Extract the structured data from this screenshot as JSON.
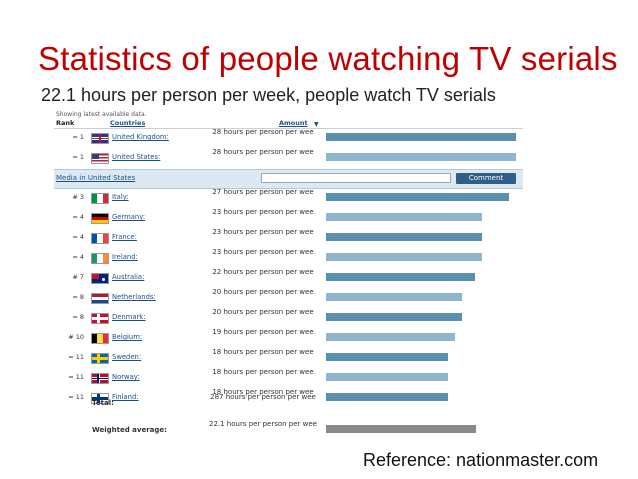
{
  "slide": {
    "title": "Statistics of people watching TV serials",
    "subtitle": "22.1 hours per person per week, people watch TV serials",
    "reference": "Reference: nationmaster.com"
  },
  "table": {
    "showing": "Showing latest available data.",
    "headers": {
      "rank": "Rank",
      "countries": "Countries",
      "amount": "Amount"
    },
    "media": {
      "label": "Media in United States",
      "button": "Comment"
    },
    "rows": [
      {
        "rank": "= 1",
        "country": "United Kingdom:",
        "amount": "28 hours per person per wee",
        "hours": 28,
        "flag": "uk"
      },
      {
        "rank": "= 1",
        "country": "United States:",
        "amount": "28 hours per person per wee",
        "hours": 28,
        "flag": "us"
      },
      {
        "rank": "# 3",
        "country": "Italy:",
        "amount": "27 hours per person per wee",
        "hours": 27,
        "flag": "it"
      },
      {
        "rank": "= 4",
        "country": "Germany:",
        "amount": "23 hours per person per wee",
        "hours": 23,
        "flag": "de"
      },
      {
        "rank": "= 4",
        "country": "France:",
        "amount": "23 hours per person per wee",
        "hours": 23,
        "flag": "fr"
      },
      {
        "rank": "= 4",
        "country": "Ireland:",
        "amount": "23 hours per person per wee",
        "hours": 23,
        "flag": "ie"
      },
      {
        "rank": "# 7",
        "country": "Australia:",
        "amount": "22 hours per person per wee",
        "hours": 22,
        "flag": "au"
      },
      {
        "rank": "= 8",
        "country": "Netherlands:",
        "amount": "20 hours per person per wee",
        "hours": 20,
        "flag": "nl"
      },
      {
        "rank": "= 8",
        "country": "Denmark:",
        "amount": "20 hours per person per wee",
        "hours": 20,
        "flag": "dk"
      },
      {
        "rank": "# 10",
        "country": "Belgium:",
        "amount": "19 hours per person per wee",
        "hours": 19,
        "flag": "be"
      },
      {
        "rank": "= 11",
        "country": "Sweden:",
        "amount": "18 hours per person per wee",
        "hours": 18,
        "flag": "se"
      },
      {
        "rank": "= 11",
        "country": "Norway:",
        "amount": "18 hours per person per wee",
        "hours": 18,
        "flag": "no"
      },
      {
        "rank": "= 11",
        "country": "Finland:",
        "amount": "18 hours per person per wee",
        "hours": 18,
        "flag": "fi"
      }
    ],
    "total": {
      "label": "Total:",
      "amount": "287 hours per person per wee"
    },
    "weighted": {
      "label": "Weighted average:",
      "amount": "22.1 hours per person per wee",
      "hours": 22.1
    },
    "colors": {
      "bar_dark": "#5b8fae",
      "bar_light": "#8fb6cd",
      "bar_average": "#8a8a8a",
      "title": "#c00000"
    }
  }
}
